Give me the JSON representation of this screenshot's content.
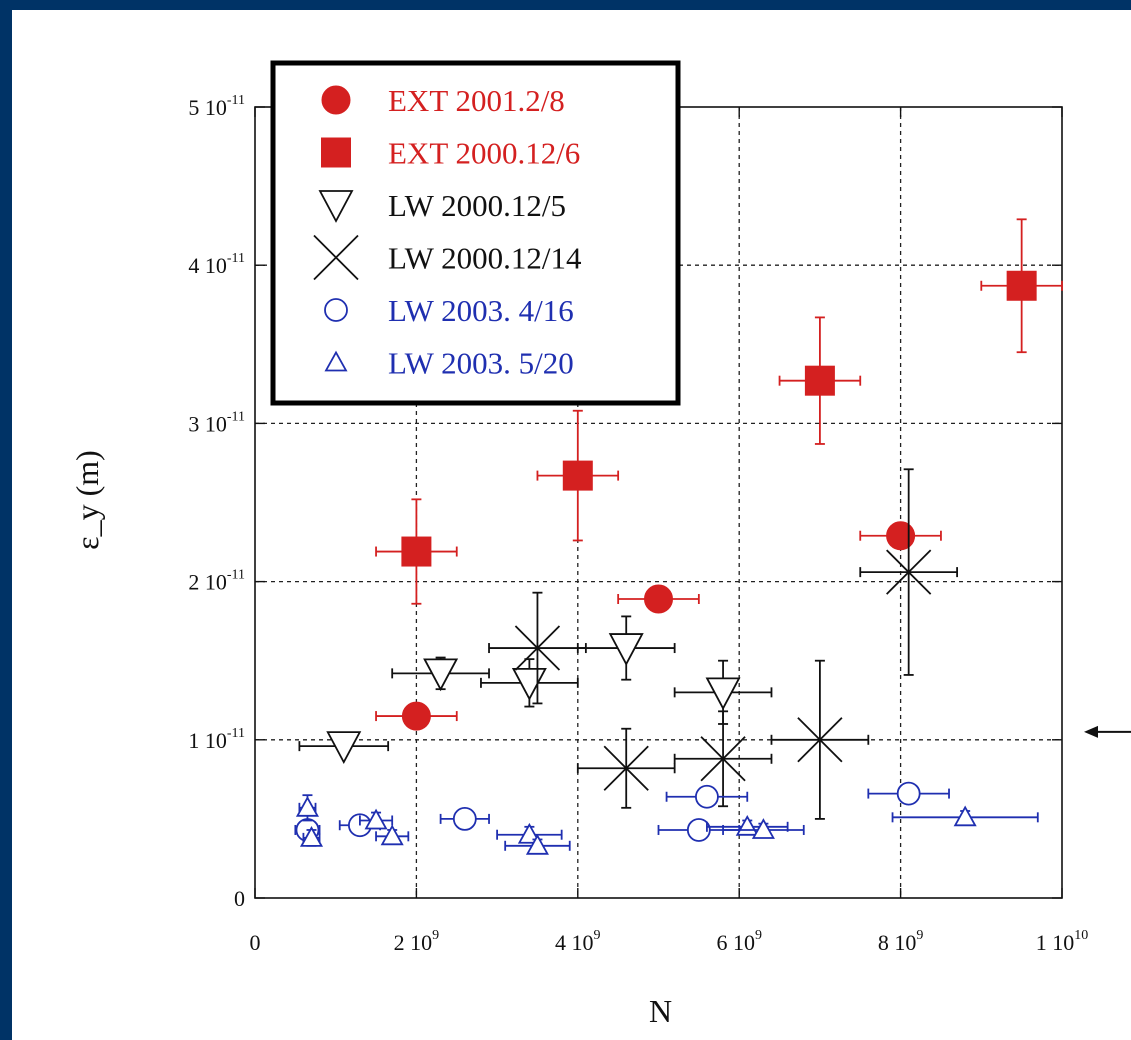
{
  "colors": {
    "background": "#003366",
    "ext": "#d42020",
    "lw_old": "#111111",
    "lw_new": "#1f2fb0"
  },
  "chart_data": {
    "type": "scatter",
    "xlabel": "N",
    "ylabel": "ε_y (m)",
    "xlim": [
      0,
      10000000000
    ],
    "ylim": [
      0,
      5e-11
    ],
    "grid": true,
    "legend_position": "top-left",
    "x_ticks": [
      {
        "value": 0,
        "mant": "0",
        "exp": ""
      },
      {
        "value": 2000000000,
        "mant": "2 10",
        "exp": "9"
      },
      {
        "value": 4000000000,
        "mant": "4 10",
        "exp": "9"
      },
      {
        "value": 6000000000,
        "mant": "6 10",
        "exp": "9"
      },
      {
        "value": 8000000000,
        "mant": "8 10",
        "exp": "9"
      },
      {
        "value": 10000000000,
        "mant": "1 10",
        "exp": "10"
      }
    ],
    "y_ticks": [
      {
        "value": 0,
        "mant": "0",
        "exp": ""
      },
      {
        "value": 1e-11,
        "mant": "1 10",
        "exp": "-11"
      },
      {
        "value": 2e-11,
        "mant": "2 10",
        "exp": "-11"
      },
      {
        "value": 3e-11,
        "mant": "3 10",
        "exp": "-11"
      },
      {
        "value": 4e-11,
        "mant": "4 10",
        "exp": "-11"
      },
      {
        "value": 5e-11,
        "mant": "5 10",
        "exp": "-11"
      }
    ],
    "series": [
      {
        "name": "EXT 2001.2/8",
        "marker": "circle-filled",
        "color": "#d42020",
        "points": [
          {
            "x": 2000000000,
            "y": 1.15e-11,
            "xerr": 500000000,
            "yerr": 0
          },
          {
            "x": 5000000000,
            "y": 1.89e-11,
            "xerr": 500000000,
            "yerr": 0
          },
          {
            "x": 8000000000,
            "y": 2.29e-11,
            "xerr": 500000000,
            "yerr": 0
          }
        ]
      },
      {
        "name": "EXT 2000.12/6",
        "marker": "square-filled",
        "color": "#d42020",
        "points": [
          {
            "x": 2000000000,
            "y": 2.19e-11,
            "xerr": 500000000,
            "yerr": 3.3e-12
          },
          {
            "x": 4000000000,
            "y": 2.67e-11,
            "xerr": 500000000,
            "yerr": 4.1e-12
          },
          {
            "x": 7000000000,
            "y": 3.27e-11,
            "xerr": 500000000,
            "yerr": 4e-12
          },
          {
            "x": 9500000000,
            "y": 3.87e-11,
            "xerr": 500000000,
            "yerr": 4.2e-12
          }
        ]
      },
      {
        "name": "LW 2000.12/5",
        "marker": "triangle-down-open",
        "color": "#111111",
        "points": [
          {
            "x": 1100000000,
            "y": 9.6e-12,
            "xerr": 550000000,
            "yerr": 0
          },
          {
            "x": 2300000000,
            "y": 1.42e-11,
            "xerr": 600000000,
            "yerr": 1e-12
          },
          {
            "x": 3400000000,
            "y": 1.36e-11,
            "xerr": 600000000,
            "yerr": 1.5e-12
          },
          {
            "x": 4600000000,
            "y": 1.58e-11,
            "xerr": 600000000,
            "yerr": 2e-12
          },
          {
            "x": 5800000000,
            "y": 1.3e-11,
            "xerr": 600000000,
            "yerr": 2e-12
          }
        ]
      },
      {
        "name": "LW 2000.12/14",
        "marker": "x",
        "color": "#111111",
        "points": [
          {
            "x": 3500000000,
            "y": 1.58e-11,
            "xerr": 600000000,
            "yerr": 3.5e-12
          },
          {
            "x": 4600000000,
            "y": 8.2e-12,
            "xerr": 600000000,
            "yerr": 2.5e-12
          },
          {
            "x": 5800000000,
            "y": 8.8e-12,
            "xerr": 600000000,
            "yerr": 3e-12
          },
          {
            "x": 7000000000,
            "y": 1e-11,
            "xerr": 600000000,
            "yerr": 5e-12
          },
          {
            "x": 8100000000,
            "y": 2.06e-11,
            "xerr": 600000000,
            "yerr": 6.5e-12
          }
        ]
      },
      {
        "name": "LW 2003. 4/16",
        "marker": "circle-open",
        "color": "#1f2fb0",
        "points": [
          {
            "x": 650000000,
            "y": 4.3e-12,
            "xerr": 150000000,
            "yerr": 0
          },
          {
            "x": 1300000000,
            "y": 4.6e-12,
            "xerr": 250000000,
            "yerr": 0
          },
          {
            "x": 2600000000,
            "y": 5e-12,
            "xerr": 300000000,
            "yerr": 0
          },
          {
            "x": 5500000000,
            "y": 4.3e-12,
            "xerr": 500000000,
            "yerr": 0
          },
          {
            "x": 5600000000,
            "y": 6.4e-12,
            "xerr": 500000000,
            "yerr": 0
          },
          {
            "x": 8100000000,
            "y": 6.6e-12,
            "xerr": 500000000,
            "yerr": 0
          }
        ]
      },
      {
        "name": "LW 2003. 5/20",
        "marker": "triangle-up-open",
        "color": "#1f2fb0",
        "points": [
          {
            "x": 650000000,
            "y": 5.7e-12,
            "xerr": 100000000,
            "yerr": 8e-13
          },
          {
            "x": 700000000,
            "y": 3.8e-12,
            "xerr": 100000000,
            "yerr": 5e-13
          },
          {
            "x": 1500000000,
            "y": 4.9e-12,
            "xerr": 200000000,
            "yerr": 5e-13
          },
          {
            "x": 1700000000,
            "y": 3.9e-12,
            "xerr": 200000000,
            "yerr": 4e-13
          },
          {
            "x": 3400000000,
            "y": 4e-12,
            "xerr": 400000000,
            "yerr": 5e-13
          },
          {
            "x": 3500000000,
            "y": 3.3e-12,
            "xerr": 400000000,
            "yerr": 4e-13
          },
          {
            "x": 6100000000,
            "y": 4.5e-12,
            "xerr": 500000000,
            "yerr": 4e-13
          },
          {
            "x": 6300000000,
            "y": 4.3e-12,
            "xerr": 500000000,
            "yerr": 4e-13
          },
          {
            "x": 8800000000,
            "y": 5.1e-12,
            "xerr": 900000000,
            "yerr": 4e-13
          }
        ]
      }
    ],
    "annotations": [
      {
        "type": "arrow",
        "pointing": "left",
        "y": 1.05e-11
      }
    ]
  }
}
